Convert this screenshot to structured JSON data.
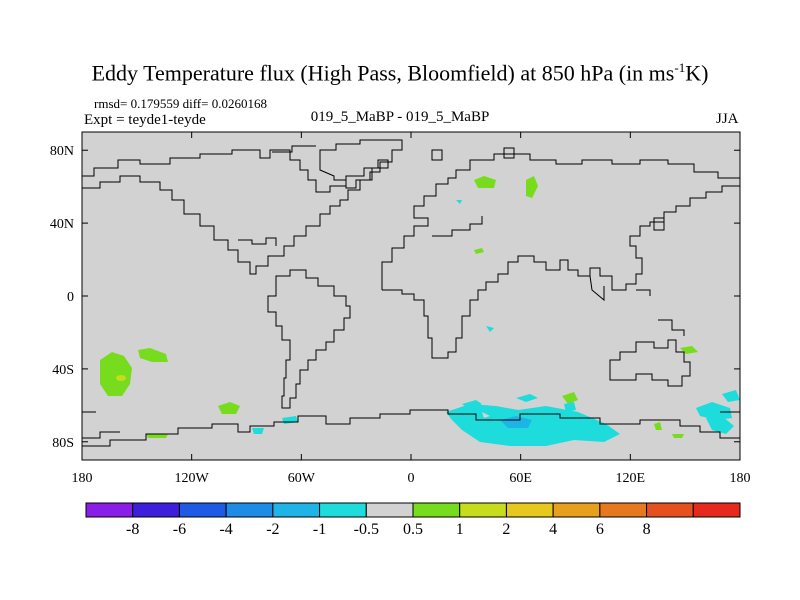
{
  "title": {
    "main": "Eddy Temperature flux (High Pass, Bloomfield) at 850 hPa (in ms",
    "sup": "-1",
    "tail": "K)"
  },
  "stats": "rmsd= 0.179559 diff= 0.0260168",
  "experiment": "Expt = teyde1-teyde",
  "center_label": "019_5_MaBP - 019_5_MaBP",
  "season": "JJA",
  "map": {
    "lat_ticks": [
      {
        "label": "80N",
        "value": 80
      },
      {
        "label": "40N",
        "value": 40
      },
      {
        "label": "0",
        "value": 0
      },
      {
        "label": "40S",
        "value": -40
      },
      {
        "label": "80S",
        "value": -80
      }
    ],
    "lon_ticks": [
      {
        "label": "180",
        "value": -180
      },
      {
        "label": "120W",
        "value": -120
      },
      {
        "label": "60W",
        "value": -60
      },
      {
        "label": "0",
        "value": 0
      },
      {
        "label": "60E",
        "value": 60
      },
      {
        "label": "120E",
        "value": 120
      },
      {
        "label": "180",
        "value": 180
      }
    ],
    "lon_range": [
      -180,
      180
    ],
    "lat_range": [
      -90,
      90
    ],
    "background_color": "#d2d2d2"
  },
  "colorbar": {
    "colors": [
      "#8a1ee6",
      "#3c1edc",
      "#1e5ae6",
      "#1e8ce6",
      "#1eb4e6",
      "#1edcdc",
      "#d2d2d2",
      "#78dc1e",
      "#c8dc1e",
      "#e6c81e",
      "#e6a01e",
      "#e6781e",
      "#e6501e",
      "#e6281e"
    ],
    "labels": [
      "-8",
      "-6",
      "-4",
      "-2",
      "-1",
      "-0.5",
      "0.5",
      "1",
      "2",
      "4",
      "6",
      "8"
    ]
  }
}
